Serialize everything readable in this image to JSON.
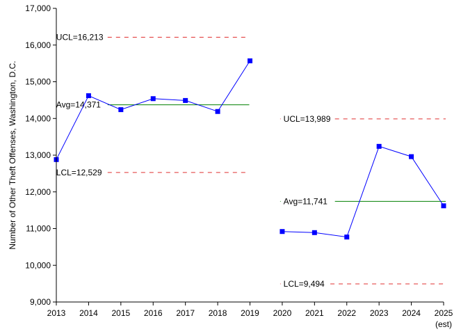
{
  "chart_data": {
    "type": "line",
    "title": "",
    "xlabel": "",
    "ylabel": "Number of Other Theft Offenses, Washington, D.C.",
    "ylim": [
      9000,
      17000
    ],
    "y_ticks": [
      "9,000",
      "10,000",
      "11,000",
      "12,000",
      "13,000",
      "14,000",
      "15,000",
      "16,000",
      "17,000"
    ],
    "x_ticks": [
      "2013",
      "2014",
      "2015",
      "2016",
      "2017",
      "2018",
      "2019",
      "2020",
      "2021",
      "2022",
      "2023",
      "2024",
      "2025"
    ],
    "x_tick_note": "(est)",
    "grid": false,
    "legend": "none",
    "colors": {
      "data": "#0000ff",
      "average": "#008000",
      "limits": "#e03030"
    },
    "segments": [
      {
        "x": [
          2013,
          2014,
          2015,
          2016,
          2017,
          2018,
          2019
        ],
        "values": [
          12880,
          14620,
          14240,
          14540,
          14490,
          14190,
          15570
        ],
        "avg": 14371,
        "ucl": 16213,
        "lcl": 12529,
        "avg_label": "Avg=14,371",
        "ucl_label": "UCL=16,213",
        "lcl_label": "LCL=12,529"
      },
      {
        "x": [
          2020,
          2021,
          2022,
          2023,
          2024,
          2025
        ],
        "values": [
          10920,
          10890,
          10770,
          13240,
          12960,
          11620
        ],
        "avg": 11741,
        "ucl": 13989,
        "lcl": 9494,
        "avg_label": "Avg=11,741",
        "ucl_label": "UCL=13,989",
        "lcl_label": "LCL=9,494"
      }
    ]
  }
}
